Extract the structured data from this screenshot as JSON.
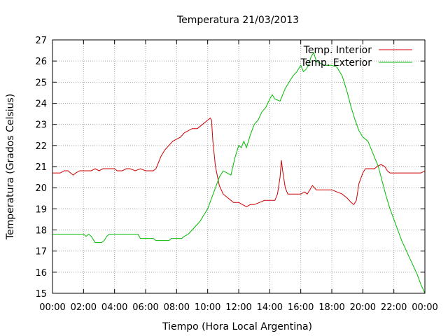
{
  "chart_data": {
    "type": "line",
    "title": "Temperatura 21/03/2013",
    "xlabel": "Tiempo (Hora Local Argentina)",
    "ylabel": "Temperatura (Grados Celsius)",
    "xlim": [
      "00:00",
      "24:00"
    ],
    "ylim": [
      15,
      27
    ],
    "grid": true,
    "legend_position": "top-right",
    "x_ticks": [
      "00:00",
      "02:00",
      "04:00",
      "06:00",
      "08:00",
      "10:00",
      "12:00",
      "14:00",
      "16:00",
      "18:00",
      "20:00",
      "22:00",
      "00:00"
    ],
    "y_ticks": [
      15,
      16,
      17,
      18,
      19,
      20,
      21,
      22,
      23,
      24,
      25,
      26,
      27
    ],
    "series": [
      {
        "name": "Temp. Interior",
        "color": "#cc0000",
        "points": [
          [
            "00:00",
            20.7
          ],
          [
            "00:30",
            20.7
          ],
          [
            "00:45",
            20.8
          ],
          [
            "01:00",
            20.8
          ],
          [
            "01:10",
            20.7
          ],
          [
            "01:20",
            20.6
          ],
          [
            "01:30",
            20.7
          ],
          [
            "01:45",
            20.8
          ],
          [
            "02:30",
            20.8
          ],
          [
            "02:45",
            20.9
          ],
          [
            "03:00",
            20.8
          ],
          [
            "03:15",
            20.9
          ],
          [
            "04:00",
            20.9
          ],
          [
            "04:10",
            20.8
          ],
          [
            "04:30",
            20.8
          ],
          [
            "04:45",
            20.9
          ],
          [
            "05:00",
            20.9
          ],
          [
            "05:20",
            20.8
          ],
          [
            "05:40",
            20.9
          ],
          [
            "06:00",
            20.8
          ],
          [
            "06:30",
            20.8
          ],
          [
            "06:40",
            20.9
          ],
          [
            "06:50",
            21.2
          ],
          [
            "07:00",
            21.5
          ],
          [
            "07:15",
            21.8
          ],
          [
            "07:30",
            22.0
          ],
          [
            "07:45",
            22.2
          ],
          [
            "08:00",
            22.3
          ],
          [
            "08:15",
            22.4
          ],
          [
            "08:30",
            22.6
          ],
          [
            "08:45",
            22.7
          ],
          [
            "09:00",
            22.8
          ],
          [
            "09:20",
            22.8
          ],
          [
            "09:40",
            23.0
          ],
          [
            "10:00",
            23.2
          ],
          [
            "10:10",
            23.3
          ],
          [
            "10:15",
            23.2
          ],
          [
            "10:20",
            22.2
          ],
          [
            "10:30",
            21.0
          ],
          [
            "10:45",
            20.1
          ],
          [
            "11:00",
            19.7
          ],
          [
            "11:20",
            19.5
          ],
          [
            "11:40",
            19.3
          ],
          [
            "12:00",
            19.3
          ],
          [
            "12:15",
            19.2
          ],
          [
            "12:30",
            19.1
          ],
          [
            "12:45",
            19.2
          ],
          [
            "13:00",
            19.2
          ],
          [
            "13:20",
            19.3
          ],
          [
            "13:40",
            19.4
          ],
          [
            "14:00",
            19.4
          ],
          [
            "14:20",
            19.4
          ],
          [
            "14:30",
            19.7
          ],
          [
            "14:40",
            20.5
          ],
          [
            "14:45",
            21.3
          ],
          [
            "14:50",
            20.8
          ],
          [
            "15:00",
            20.0
          ],
          [
            "15:10",
            19.7
          ],
          [
            "15:30",
            19.7
          ],
          [
            "16:00",
            19.7
          ],
          [
            "16:15",
            19.8
          ],
          [
            "16:25",
            19.7
          ],
          [
            "16:35",
            19.9
          ],
          [
            "16:45",
            20.1
          ],
          [
            "17:00",
            19.9
          ],
          [
            "17:30",
            19.9
          ],
          [
            "18:00",
            19.9
          ],
          [
            "18:20",
            19.8
          ],
          [
            "18:40",
            19.7
          ],
          [
            "19:00",
            19.5
          ],
          [
            "19:15",
            19.3
          ],
          [
            "19:25",
            19.2
          ],
          [
            "19:35",
            19.4
          ],
          [
            "19:45",
            20.2
          ],
          [
            "20:00",
            20.7
          ],
          [
            "20:10",
            20.9
          ],
          [
            "20:45",
            20.9
          ],
          [
            "20:55",
            21.0
          ],
          [
            "21:10",
            21.1
          ],
          [
            "21:25",
            21.0
          ],
          [
            "21:35",
            20.8
          ],
          [
            "21:45",
            20.7
          ],
          [
            "23:45",
            20.7
          ],
          [
            "24:00",
            20.8
          ]
        ]
      },
      {
        "name": "Temp. Exterior",
        "color": "#00bb00",
        "points": [
          [
            "00:00",
            17.8
          ],
          [
            "02:00",
            17.8
          ],
          [
            "02:10",
            17.7
          ],
          [
            "02:20",
            17.8
          ],
          [
            "02:30",
            17.7
          ],
          [
            "02:45",
            17.4
          ],
          [
            "03:10",
            17.4
          ],
          [
            "03:20",
            17.5
          ],
          [
            "03:30",
            17.7
          ],
          [
            "03:40",
            17.8
          ],
          [
            "05:30",
            17.8
          ],
          [
            "05:40",
            17.6
          ],
          [
            "06:30",
            17.6
          ],
          [
            "06:40",
            17.5
          ],
          [
            "07:30",
            17.5
          ],
          [
            "07:40",
            17.6
          ],
          [
            "08:20",
            17.6
          ],
          [
            "08:30",
            17.7
          ],
          [
            "08:45",
            17.8
          ],
          [
            "09:00",
            18.0
          ],
          [
            "09:15",
            18.2
          ],
          [
            "09:30",
            18.4
          ],
          [
            "09:45",
            18.7
          ],
          [
            "10:00",
            19.0
          ],
          [
            "10:15",
            19.5
          ],
          [
            "10:30",
            20.0
          ],
          [
            "10:45",
            20.5
          ],
          [
            "11:00",
            20.8
          ],
          [
            "11:15",
            20.7
          ],
          [
            "11:30",
            20.6
          ],
          [
            "11:45",
            21.4
          ],
          [
            "12:00",
            22.0
          ],
          [
            "12:10",
            21.9
          ],
          [
            "12:20",
            22.2
          ],
          [
            "12:30",
            21.9
          ],
          [
            "12:45",
            22.5
          ],
          [
            "13:00",
            23.0
          ],
          [
            "13:15",
            23.2
          ],
          [
            "13:30",
            23.6
          ],
          [
            "13:45",
            23.8
          ],
          [
            "14:00",
            24.2
          ],
          [
            "14:10",
            24.4
          ],
          [
            "14:20",
            24.2
          ],
          [
            "14:40",
            24.1
          ],
          [
            "14:50",
            24.4
          ],
          [
            "15:00",
            24.7
          ],
          [
            "15:15",
            25.0
          ],
          [
            "15:30",
            25.3
          ],
          [
            "15:45",
            25.5
          ],
          [
            "16:00",
            25.8
          ],
          [
            "16:10",
            25.5
          ],
          [
            "16:20",
            25.6
          ],
          [
            "16:30",
            25.8
          ],
          [
            "16:40",
            26.2
          ],
          [
            "16:50",
            26.4
          ],
          [
            "17:00",
            26.0
          ],
          [
            "17:15",
            25.9
          ],
          [
            "17:30",
            25.8
          ],
          [
            "18:00",
            25.8
          ],
          [
            "18:20",
            25.7
          ],
          [
            "18:40",
            25.3
          ],
          [
            "19:00",
            24.5
          ],
          [
            "19:15",
            23.8
          ],
          [
            "19:30",
            23.2
          ],
          [
            "19:45",
            22.7
          ],
          [
            "20:00",
            22.4
          ],
          [
            "20:20",
            22.2
          ],
          [
            "20:40",
            21.6
          ],
          [
            "21:00",
            21.0
          ],
          [
            "21:15",
            20.3
          ],
          [
            "21:30",
            19.6
          ],
          [
            "21:45",
            19.0
          ],
          [
            "22:00",
            18.5
          ],
          [
            "22:15",
            18.0
          ],
          [
            "22:30",
            17.5
          ],
          [
            "22:45",
            17.1
          ],
          [
            "23:00",
            16.7
          ],
          [
            "23:15",
            16.3
          ],
          [
            "23:30",
            15.9
          ],
          [
            "23:45",
            15.4
          ],
          [
            "24:00",
            15.0
          ]
        ]
      }
    ]
  }
}
